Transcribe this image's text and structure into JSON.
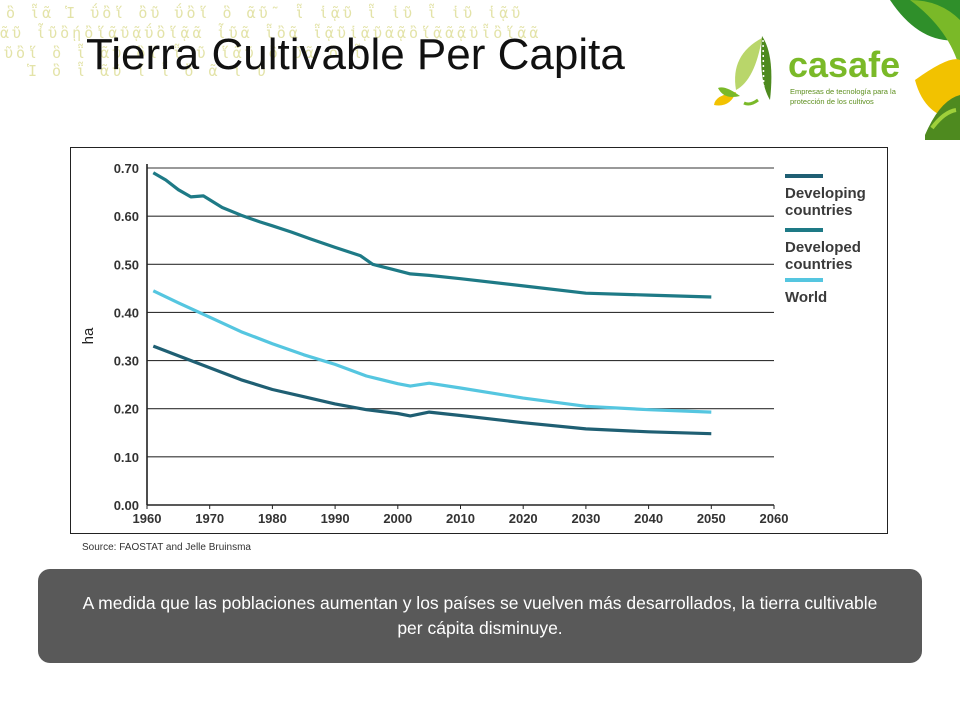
{
  "slide": {
    "title": "Tierra Cultivable Per Capita",
    "source": "Source: FAOSTAT and Jelle Bruinsma",
    "callout": "A medida que las poblaciones aumentan y los países se vuelven más desarrollados, la tierra cultivable per cápita disminuye.",
    "background_glyphs": [
      "ὃ ῗᾶ  Ἱ   ΰὂἵ ὂῦ  ΰὂἵ ὃ ᾶῦ῀  ῗ ἱᾷῦ ῗ ἱῦ ῗ  ἱῦ ἱᾷῦ",
      "ᾶῦ ἶῦὂῄὂἵᾶῦᾷΰὂἵᾷᾶ ἶῦᾶ ῗὂᾶ  ῗᾷῦἱᾷῦᾶᾷὂἵᾷᾶᾷῦῗὂἵᾷᾶ",
      "ῦὂἵ  ὃ ῗ ᾶῦ  ὂἵ ῗ   ῦ  ἵᾶῦ  ὂ  ῦᾶ ὃ ῗ",
      "Ἱ  ὃ ῗ   ᾶῦ  ἵ   ῗ   ὂ  ᾶ  ἱ    ῦ"
    ]
  },
  "logo": {
    "brand": "casafe",
    "tagline": "Empresas de tecnología para la protección de los cultivos",
    "icon": "leaf-logo-icon",
    "colors": {
      "green": "#7ab928",
      "dark_green": "#4e8a1f",
      "yellow": "#f2c200",
      "light_green": "#b9d66a"
    }
  },
  "chart_data": {
    "type": "line",
    "ylabel": "ha",
    "xlabel": "",
    "ylim": [
      0,
      0.7
    ],
    "xlim": [
      1960,
      2060
    ],
    "yticks": [
      "0.00",
      "0.10",
      "0.20",
      "0.30",
      "0.40",
      "0.50",
      "0.60",
      "0.70"
    ],
    "xticks": [
      "1960",
      "1970",
      "1980",
      "1990",
      "2000",
      "2010",
      "2020",
      "2030",
      "2040",
      "2050",
      "2060"
    ],
    "grid": "horizontal",
    "legend_position": "right",
    "series": [
      {
        "name": "Developing countries",
        "color": "#1f5f73",
        "x": [
          1961,
          1965,
          1970,
          1975,
          1980,
          1985,
          1990,
          1995,
          2000,
          2002,
          2005,
          2010,
          2020,
          2030,
          2040,
          2050
        ],
        "y": [
          0.33,
          0.31,
          0.285,
          0.26,
          0.24,
          0.225,
          0.21,
          0.198,
          0.19,
          0.185,
          0.193,
          0.186,
          0.171,
          0.158,
          0.152,
          0.148
        ]
      },
      {
        "name": "Developed countries",
        "color": "#1e7a86",
        "x": [
          1961,
          1963,
          1965,
          1967,
          1969,
          1972,
          1975,
          1978,
          1980,
          1983,
          1986,
          1990,
          1994,
          1996,
          1999,
          2002,
          2005,
          2010,
          2020,
          2030,
          2040,
          2050
        ],
        "y": [
          0.69,
          0.675,
          0.655,
          0.64,
          0.642,
          0.618,
          0.602,
          0.588,
          0.58,
          0.567,
          0.553,
          0.535,
          0.518,
          0.5,
          0.49,
          0.48,
          0.477,
          0.47,
          0.455,
          0.44,
          0.436,
          0.432
        ]
      },
      {
        "name": "World",
        "color": "#55c6e0",
        "x": [
          1961,
          1965,
          1970,
          1975,
          1980,
          1985,
          1990,
          1995,
          2000,
          2002,
          2005,
          2010,
          2020,
          2030,
          2040,
          2050
        ],
        "y": [
          0.445,
          0.42,
          0.39,
          0.36,
          0.335,
          0.312,
          0.292,
          0.268,
          0.252,
          0.247,
          0.253,
          0.243,
          0.222,
          0.205,
          0.198,
          0.193
        ]
      }
    ]
  }
}
